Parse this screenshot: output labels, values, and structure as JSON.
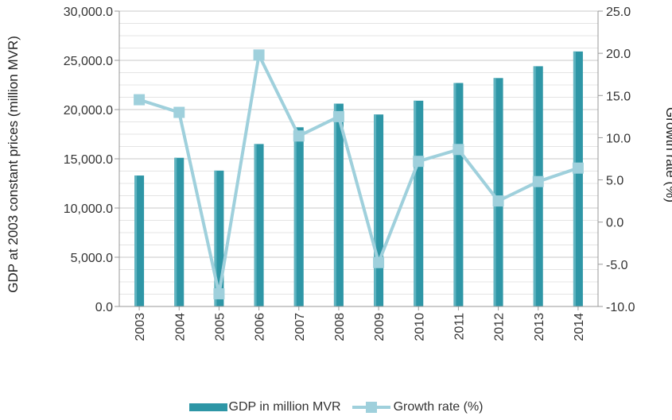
{
  "chart_data": {
    "type": "bar+line",
    "categories": [
      "2003",
      "2004",
      "2005",
      "2006",
      "2007",
      "2008",
      "2009",
      "2010",
      "2011",
      "2012",
      "2013",
      "2014"
    ],
    "series": [
      {
        "name": "GDP in million MVR",
        "type": "bar",
        "axis": "left",
        "values": [
          13300,
          15100,
          13800,
          16500,
          18200,
          20600,
          19500,
          20900,
          22700,
          23200,
          24400,
          25900
        ]
      },
      {
        "name": "Growth rate (%)",
        "type": "line",
        "axis": "right",
        "values": [
          14.5,
          13.0,
          -8.5,
          19.8,
          10.2,
          12.5,
          -4.8,
          7.2,
          8.6,
          2.5,
          4.8,
          6.4
        ]
      }
    ],
    "ylabel_left": "GDP at 2003 constant prices (million MVR)",
    "ylabel_right": "Growth rate (%)",
    "ylim_left": [
      0,
      30000
    ],
    "ylim_right": [
      -10,
      25
    ],
    "yticks_left": [
      "0.0",
      "5,000.0",
      "10,000.0",
      "15,000.0",
      "20,000.0",
      "25,000.0",
      "30,000.0"
    ],
    "yticks_right": [
      "-10.0",
      "-5.0",
      "0.0",
      "5.0",
      "10.0",
      "15.0",
      "20.0",
      "25.0"
    ],
    "grid": true,
    "legend_position": "bottom"
  },
  "colors": {
    "bar": "#2e96a6",
    "bar_light": "#5fb3bf",
    "line": "#9fd0dc",
    "marker": "#9fd0dc",
    "grid": "#c9c9c9",
    "axis": "#999999"
  }
}
